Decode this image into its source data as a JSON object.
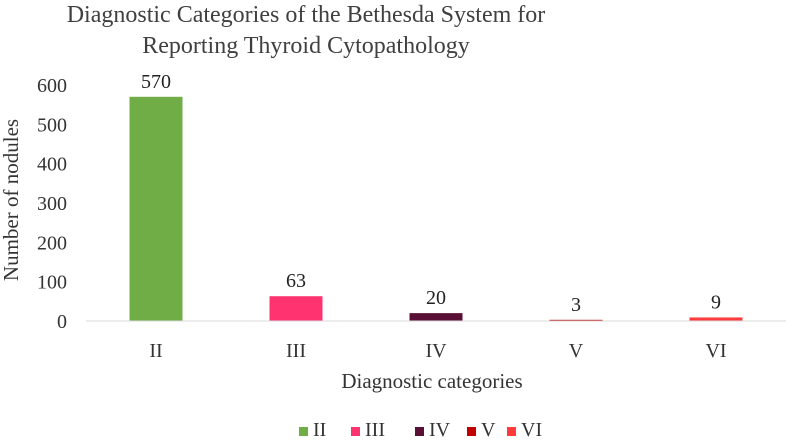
{
  "chart_data": {
    "type": "bar",
    "title_lines": [
      "Diagnostic Categories of the Bethesda System for",
      "Reporting Thyroid Cytopathology"
    ],
    "xlabel": "Diagnostic categories",
    "ylabel": "Number of nodules",
    "categories": [
      "II",
      "III",
      "IV",
      "V",
      "VI"
    ],
    "values": [
      570,
      63,
      20,
      3,
      9
    ],
    "data_labels": [
      "570",
      "63",
      "20",
      "3",
      "9"
    ],
    "colors": [
      "#70AD47",
      "#FF3370",
      "#5A0F36",
      "#C00000",
      "#FF3B3B"
    ],
    "ylim": [
      0,
      600
    ],
    "yticks": [
      0,
      100,
      200,
      300,
      400,
      500,
      600
    ],
    "grid": false,
    "legend": {
      "position": "bottom",
      "entries": [
        "II",
        "III",
        "IV",
        "V",
        "VI"
      ]
    }
  }
}
